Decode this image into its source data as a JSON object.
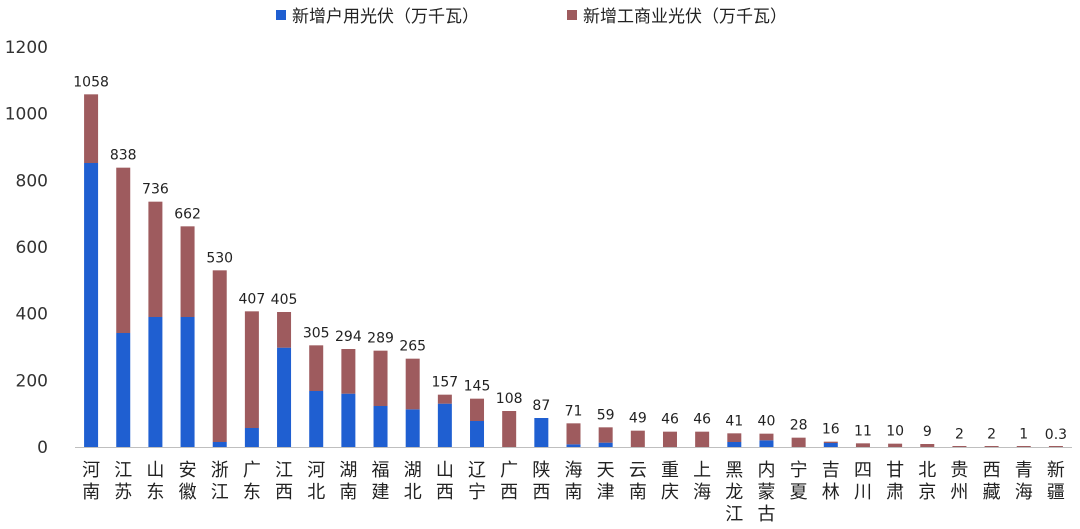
{
  "chart_data": {
    "type": "bar",
    "stacked": true,
    "legend": [
      {
        "name": "新增户用光伏（万千瓦）",
        "color": "#1f5fd1"
      },
      {
        "name": "新增工商业光伏（万千瓦）",
        "color": "#9e5b5e"
      }
    ],
    "categories": [
      "河南",
      "江苏",
      "山东",
      "安徽",
      "浙江",
      "广东",
      "江西",
      "河北",
      "湖南",
      "福建",
      "湖北",
      "山西",
      "辽宁",
      "广西",
      "陕西",
      "海南",
      "天津",
      "云南",
      "重庆",
      "上海",
      "黑龙江",
      "内蒙古",
      "宁夏",
      "吉林",
      "四川",
      "甘肃",
      "北京",
      "贵州",
      "西藏",
      "青海",
      "新疆"
    ],
    "series": [
      {
        "name": "新增户用光伏（万千瓦）",
        "color": "#1f5fd1",
        "values": [
          852,
          342,
          390,
          390,
          15,
          57,
          298,
          168,
          160,
          123,
          113,
          130,
          78,
          0,
          87,
          8,
          13,
          0,
          0,
          0,
          15,
          20,
          0,
          12,
          0,
          0,
          0,
          0,
          0,
          0,
          0
        ]
      },
      {
        "name": "新增工商业光伏（万千瓦）",
        "color": "#9e5b5e",
        "values": [
          206,
          496,
          346,
          272,
          515,
          350,
          107,
          137,
          134,
          166,
          152,
          27,
          67,
          108,
          0,
          63,
          46,
          49,
          46,
          46,
          26,
          20,
          28,
          4,
          11,
          10,
          9,
          2,
          2,
          1,
          0.3
        ]
      }
    ],
    "totals": [
      "1058",
      "838",
      "736",
      "662",
      "530",
      "407",
      "405",
      "305",
      "294",
      "289",
      "265",
      "157",
      "145",
      "108",
      "87",
      "71",
      "59",
      "49",
      "46",
      "46",
      "41",
      "40",
      "28",
      "16",
      "11",
      "10",
      "9",
      "2",
      "2",
      "1",
      "0.3"
    ],
    "yticks": [
      "0",
      "200",
      "400",
      "600",
      "800",
      "1000",
      "1200"
    ],
    "ylim": [
      0,
      1200
    ],
    "legend_position": "top-center"
  }
}
